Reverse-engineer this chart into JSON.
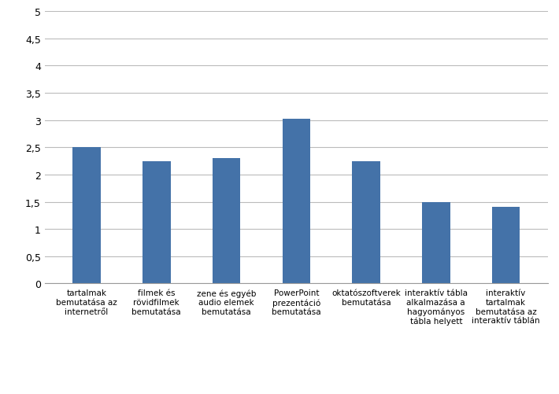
{
  "categories": [
    "tartalmak\nbemutatása az\ninternetről",
    "filmek és\nrövidfilmek\nbemutatása",
    "zene és egyéb\naudio elemek\nbemutatása",
    "PowerPoint\nprezentáció\nbemutatása",
    "oktatószoftverek\nbemutatása",
    "interaktív tábla\nalkalmazása a\nhagyományos\ntábla helyett",
    "interaktív\ntartalmak\nbemutatása az\ninteraktív táblán"
  ],
  "values": [
    2.5,
    2.25,
    2.3,
    3.03,
    2.25,
    1.5,
    1.4
  ],
  "bar_color": "#4472a8",
  "ylim": [
    0,
    5
  ],
  "yticks": [
    0,
    0.5,
    1,
    1.5,
    2,
    2.5,
    3,
    3.5,
    4,
    4.5,
    5
  ],
  "ytick_labels": [
    "0",
    "0,5",
    "1",
    "1,5",
    "2",
    "2,5",
    "3",
    "3,5",
    "4",
    "4,5",
    "5"
  ],
  "background_color": "#ffffff",
  "grid_color": "#bbbbbb",
  "xlabel_fontsize": 7.5,
  "tick_fontsize": 9,
  "bar_width": 0.4
}
